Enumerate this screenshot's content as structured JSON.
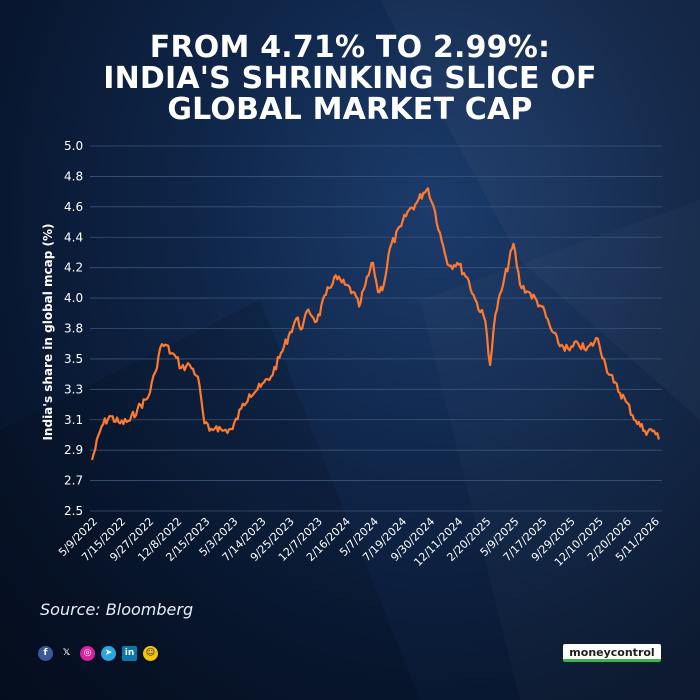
{
  "title_lines": [
    "FROM 4.71% TO 2.99%:",
    "INDIA'S SHRINKING SLICE OF",
    "GLOBAL MARKET CAP"
  ],
  "source": "Source: Bloomberg",
  "brand": "moneycontrol",
  "social_icons": [
    "facebook-icon",
    "x-icon",
    "instagram-icon",
    "telegram-icon",
    "linkedin-icon",
    "snapchat-icon"
  ],
  "colors": {
    "line": "#ff7a2e",
    "grid": "#3a5478",
    "text": "#ffffff"
  },
  "chart_data": {
    "type": "line",
    "title": "FROM 4.71% TO 2.99%: INDIA'S SHRINKING SLICE OF GLOBAL MARKET CAP",
    "xlabel": "",
    "ylabel": "India's share in global mcap (%)",
    "ylim": [
      2.5,
      5.0
    ],
    "yticks": [
      "2.5",
      "2.7",
      "2.9",
      "3.1",
      "3.3",
      "3.5",
      "3.8",
      "4.0",
      "4.2",
      "4.4",
      "4.6",
      "4.8",
      "5.0"
    ],
    "xticks": [
      "5/9/2022",
      "7/15/2022",
      "9/27/2022",
      "12/8/2022",
      "2/15/2023",
      "5/3/2023",
      "7/14/2023",
      "9/25/2023",
      "12/7/2023",
      "2/16/2024",
      "5/7/2024",
      "7/19/2024",
      "9/30/2024",
      "12/11/2024",
      "2/20/2025",
      "5/9/2025",
      "7/17/2025",
      "9/29/2025",
      "12/10/2025",
      "2/20/2026",
      "5/11/2026"
    ],
    "grid": true,
    "series": [
      {
        "x": [
          "5/9/2022",
          "6/1/2022",
          "6/20/2022",
          "7/15/2022",
          "8/10/2022",
          "8/30/2022",
          "9/27/2022",
          "10/15/2022",
          "10/28/2022",
          "11/10/2022",
          "11/25/2022",
          "12/8/2022",
          "12/20/2022",
          "1/10/2023",
          "1/30/2023",
          "2/15/2023",
          "3/1/2023",
          "3/20/2023",
          "4/5/2023",
          "5/3/2023",
          "5/25/2023",
          "6/15/2023",
          "7/14/2023",
          "8/10/2023",
          "9/1/2023",
          "9/25/2023",
          "10/15/2023",
          "10/30/2023",
          "11/15/2023",
          "12/7/2023",
          "12/30/2023",
          "1/20/2024",
          "2/16/2024",
          "3/10/2024",
          "3/28/2024",
          "4/15/2024",
          "5/7/2024",
          "5/20/2024",
          "6/4/2024",
          "6/20/2024",
          "7/19/2024",
          "8/5/2024",
          "8/25/2024",
          "9/15/2024",
          "9/27/2024",
          "10/15/2024",
          "11/1/2024",
          "11/20/2024",
          "12/11/2024",
          "1/5/2025",
          "1/25/2025",
          "2/20/2025",
          "3/5/2025",
          "3/20/2025",
          "4/10/2025",
          "5/9/2025",
          "5/25/2025",
          "6/15/2025",
          "7/17/2025",
          "8/10/2025",
          "8/30/2025",
          "9/29/2025",
          "10/20/2025",
          "11/10/2025",
          "12/10/2025",
          "12/30/2025",
          "1/20/2026",
          "2/20/2026",
          "3/20/2026",
          "4/15/2026",
          "5/11/2026",
          "5/25/2026"
        ],
        "values": [
          2.85,
          3.08,
          3.15,
          3.1,
          3.12,
          3.2,
          3.28,
          3.45,
          3.62,
          3.64,
          3.58,
          3.55,
          3.48,
          3.5,
          3.42,
          3.1,
          3.05,
          3.08,
          3.05,
          3.06,
          3.2,
          3.3,
          3.35,
          3.42,
          3.55,
          3.7,
          3.82,
          3.75,
          3.88,
          3.8,
          3.98,
          4.1,
          4.05,
          4.0,
          3.9,
          4.05,
          4.2,
          4.0,
          4.05,
          4.3,
          4.45,
          4.55,
          4.6,
          4.68,
          4.71,
          4.55,
          4.35,
          4.18,
          4.2,
          4.1,
          3.95,
          3.8,
          3.5,
          3.85,
          4.05,
          4.33,
          4.05,
          4.0,
          3.9,
          3.75,
          3.65,
          3.6,
          3.65,
          3.6,
          3.68,
          3.5,
          3.38,
          3.25,
          3.12,
          3.05,
          3.05,
          2.99
        ]
      }
    ]
  }
}
